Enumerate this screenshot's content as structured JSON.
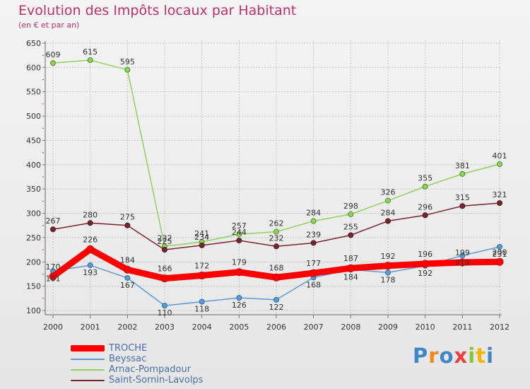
{
  "chart_data": {
    "type": "line",
    "title": "Evolution des Impôts locaux par Habitant",
    "subtitle": "(en € et par an)",
    "xlabel": "",
    "ylabel": "",
    "x": [
      "2000",
      "2001",
      "2002",
      "2003",
      "2004",
      "2005",
      "2006",
      "2007",
      "2008",
      "2009",
      "2010",
      "2011",
      "2012"
    ],
    "ylim": [
      100,
      650
    ],
    "yticks": [
      100,
      150,
      200,
      250,
      300,
      350,
      400,
      450,
      500,
      550,
      600,
      650
    ],
    "grid": true,
    "legend_position": "bottom-left",
    "series": [
      {
        "name": "TROCHE",
        "color": "#ff0000",
        "values": [
          170,
          226,
          184,
          166,
          172,
          179,
          168,
          177,
          187,
          192,
          196,
          199,
          200
        ]
      },
      {
        "name": "Beyssac",
        "color": "#5b9bd5",
        "values": [
          181,
          193,
          167,
          110,
          118,
          126,
          122,
          168,
          184,
          178,
          192,
          213,
          231
        ]
      },
      {
        "name": "Arnac-Pompadour",
        "color": "#8ed25c",
        "values": [
          609,
          615,
          595,
          232,
          241,
          257,
          262,
          284,
          298,
          326,
          355,
          381,
          401
        ]
      },
      {
        "name": "Saint-Sornin-Lavolps",
        "color": "#7a2430",
        "values": [
          267,
          280,
          275,
          225,
          234,
          244,
          232,
          239,
          255,
          284,
          296,
          315,
          321
        ]
      }
    ]
  },
  "branding": {
    "logo_text": "Proxiti"
  }
}
